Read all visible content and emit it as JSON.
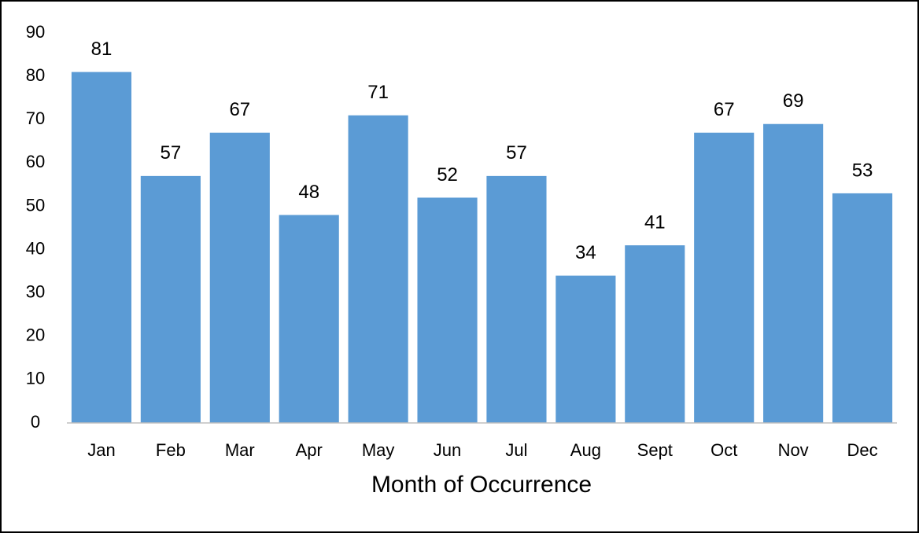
{
  "chart_data": {
    "type": "bar",
    "x_label": "Month of Occurrence",
    "categories": [
      "Jan",
      "Feb",
      "Mar",
      "Apr",
      "May",
      "Jun",
      "Jul",
      "Aug",
      "Sept",
      "Oct",
      "Nov",
      "Dec"
    ],
    "values": [
      81,
      57,
      67,
      48,
      71,
      52,
      57,
      34,
      41,
      67,
      69,
      53
    ],
    "color": "#5b9bd5",
    "ylim": [
      0,
      90
    ],
    "yticks": [
      0,
      10,
      20,
      30,
      40,
      50,
      60,
      70,
      80,
      90
    ],
    "grid": false
  }
}
